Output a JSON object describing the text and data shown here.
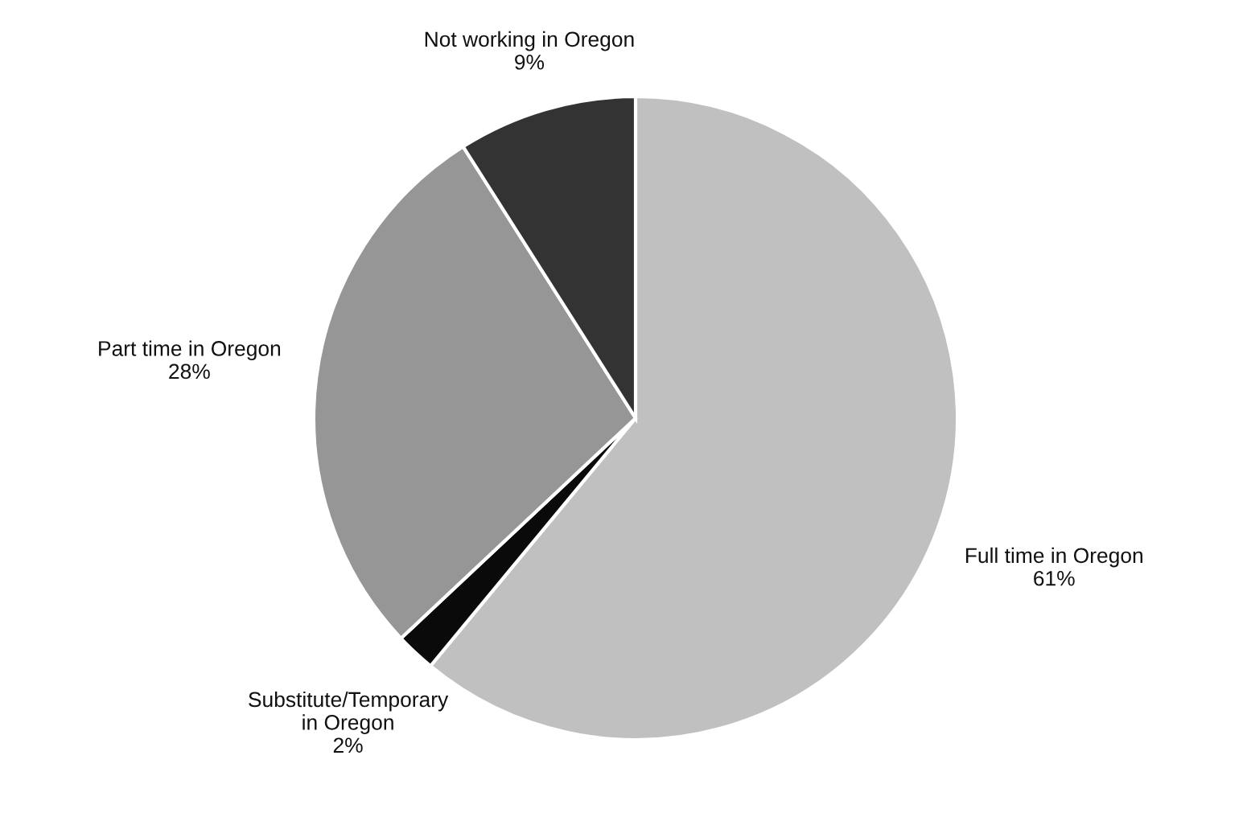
{
  "chart_data": {
    "type": "pie",
    "categories": [
      "Full time in Oregon",
      "Substitute/Temporary\nin Oregon",
      "Part time in Oregon",
      "Not working in Oregon"
    ],
    "values": [
      61,
      2,
      28,
      9
    ],
    "value_labels": [
      "61%",
      "2%",
      "28%",
      "9%"
    ],
    "colors": [
      "#c0c0c0",
      "#0a0a0a",
      "#969696",
      "#333333"
    ],
    "legend": false
  }
}
